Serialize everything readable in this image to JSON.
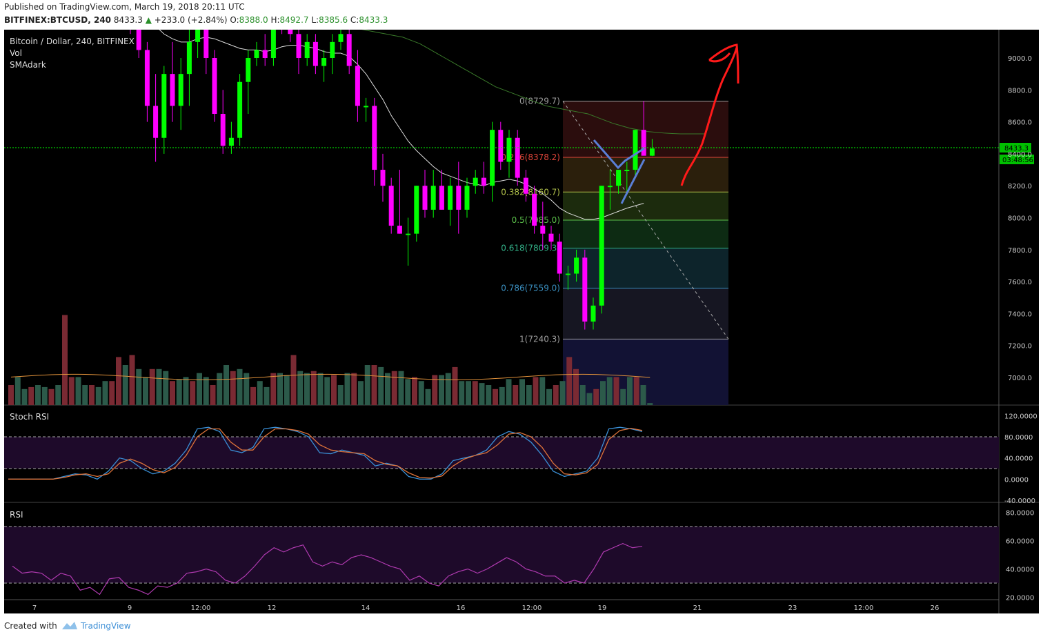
{
  "header": {
    "published": "Published on TradingView.com, March 19, 2018 20:11 UTC",
    "symbol": "BITFINEX:BTCUSD, 240",
    "last": "8433.3",
    "change": "+233.0 (+2.84%)",
    "o_label": "O:",
    "o": "8388.0",
    "h_label": "H:",
    "h": "8492.7",
    "l_label": "L:",
    "l": "8385.6",
    "c_label": "C:",
    "c": "8433.3"
  },
  "legend": {
    "title": "Bitcoin / Dollar, 240, BITFINEX",
    "vol": "Vol",
    "sma": "SMAdark"
  },
  "price_tag": "8433.3",
  "countdown_tag": "03:48:56",
  "pane_labels": {
    "stoch": "Stoch RSI",
    "rsi": "RSI"
  },
  "footer": {
    "created": "Created with",
    "brand": "TradingView"
  },
  "colors": {
    "up": "#00ff00",
    "down": "#ff00ff",
    "background": "#000000",
    "annotation": "#ff0000"
  },
  "chart_data": [
    {
      "type": "candlestick",
      "title": "Bitcoin / Dollar, 240, BITFINEX",
      "price_axis_ticks": [
        7000,
        7200,
        7400,
        7600,
        7800,
        8000,
        8200,
        8400,
        8600,
        8800,
        9000
      ],
      "time_axis_ticks": [
        "7",
        "9",
        "12:00",
        "12",
        "14",
        "16",
        "12:00",
        "19",
        "21",
        "23",
        "12:00",
        "26"
      ],
      "fibonacci": [
        {
          "level": "0",
          "price": 8729.7,
          "label": "0(8729.7)",
          "color": "#9e9e9e"
        },
        {
          "level": "0.236",
          "price": 8378.2,
          "label": "0.236(8378.2)",
          "color": "#e0453a"
        },
        {
          "level": "0.382",
          "price": 8160.7,
          "label": "0.382(8160.7)",
          "color": "#b0c04a"
        },
        {
          "level": "0.5",
          "price": 7985.0,
          "label": "0.5(7985.0)",
          "color": "#5cc24b"
        },
        {
          "level": "0.618",
          "price": 7809.3,
          "label": "0.618(7809.3)",
          "color": "#33b38a"
        },
        {
          "level": "0.786",
          "price": 7559.0,
          "label": "0.786(7559.0)",
          "color": "#3a8fc0"
        },
        {
          "level": "1",
          "price": 7240.3,
          "label": "1(7240.3)",
          "color": "#9e9e9e"
        }
      ],
      "candles": [
        {
          "o": 9300,
          "h": 9450,
          "l": 9150,
          "c": 9200
        },
        {
          "o": 9200,
          "h": 9400,
          "l": 9000,
          "c": 9050
        },
        {
          "o": 9050,
          "h": 9100,
          "l": 8600,
          "c": 8700
        },
        {
          "o": 8700,
          "h": 8900,
          "l": 8350,
          "c": 8500
        },
        {
          "o": 8500,
          "h": 8950,
          "l": 8400,
          "c": 8900
        },
        {
          "o": 8900,
          "h": 9100,
          "l": 8600,
          "c": 8700
        },
        {
          "o": 8700,
          "h": 9000,
          "l": 8550,
          "c": 8900
        },
        {
          "o": 8900,
          "h": 9200,
          "l": 8700,
          "c": 9100
        },
        {
          "o": 9100,
          "h": 9350,
          "l": 9000,
          "c": 9250
        },
        {
          "o": 9250,
          "h": 9300,
          "l": 8900,
          "c": 9000
        },
        {
          "o": 9000,
          "h": 9050,
          "l": 8600,
          "c": 8650
        },
        {
          "o": 8650,
          "h": 8800,
          "l": 8400,
          "c": 8450
        },
        {
          "o": 8450,
          "h": 8600,
          "l": 8400,
          "c": 8500
        },
        {
          "o": 8500,
          "h": 8900,
          "l": 8450,
          "c": 8850
        },
        {
          "o": 8850,
          "h": 9050,
          "l": 8650,
          "c": 9000
        },
        {
          "o": 9000,
          "h": 9100,
          "l": 8950,
          "c": 9050
        },
        {
          "o": 9050,
          "h": 9150,
          "l": 8950,
          "c": 9000
        },
        {
          "o": 9000,
          "h": 9350,
          "l": 8950,
          "c": 9300
        },
        {
          "o": 9300,
          "h": 9400,
          "l": 9150,
          "c": 9250
        },
        {
          "o": 9250,
          "h": 9300,
          "l": 9100,
          "c": 9150
        },
        {
          "o": 9150,
          "h": 9200,
          "l": 8900,
          "c": 9000
        },
        {
          "o": 9000,
          "h": 9150,
          "l": 8950,
          "c": 9100
        },
        {
          "o": 9100,
          "h": 9150,
          "l": 8900,
          "c": 8950
        },
        {
          "o": 8950,
          "h": 9050,
          "l": 8850,
          "c": 9000
        },
        {
          "o": 9000,
          "h": 9150,
          "l": 8900,
          "c": 9100
        },
        {
          "o": 9100,
          "h": 9200,
          "l": 9050,
          "c": 9150
        },
        {
          "o": 9150,
          "h": 9200,
          "l": 8900,
          "c": 8950
        },
        {
          "o": 8950,
          "h": 9050,
          "l": 8600,
          "c": 8700
        },
        {
          "o": 8700,
          "h": 8750,
          "l": 8600,
          "c": 8700
        },
        {
          "o": 8700,
          "h": 8750,
          "l": 8200,
          "c": 8300
        },
        {
          "o": 8300,
          "h": 8400,
          "l": 8100,
          "c": 8200
        },
        {
          "o": 8200,
          "h": 8250,
          "l": 7900,
          "c": 7950
        },
        {
          "o": 7950,
          "h": 8300,
          "l": 7900,
          "c": 7900
        },
        {
          "o": 7900,
          "h": 8000,
          "l": 7700,
          "c": 7900
        },
        {
          "o": 7900,
          "h": 8200,
          "l": 7850,
          "c": 8200
        },
        {
          "o": 8200,
          "h": 8300,
          "l": 8000,
          "c": 8050
        },
        {
          "o": 8050,
          "h": 8300,
          "l": 8000,
          "c": 8200
        },
        {
          "o": 8200,
          "h": 8300,
          "l": 8050,
          "c": 8050
        },
        {
          "o": 8050,
          "h": 8250,
          "l": 7950,
          "c": 8200
        },
        {
          "o": 8200,
          "h": 8350,
          "l": 7900,
          "c": 8050
        },
        {
          "o": 8050,
          "h": 8250,
          "l": 8000,
          "c": 8200
        },
        {
          "o": 8200,
          "h": 8300,
          "l": 8150,
          "c": 8250
        },
        {
          "o": 8250,
          "h": 8350,
          "l": 8150,
          "c": 8200
        },
        {
          "o": 8200,
          "h": 8600,
          "l": 8100,
          "c": 8550
        },
        {
          "o": 8550,
          "h": 8600,
          "l": 8300,
          "c": 8350
        },
        {
          "o": 8350,
          "h": 8550,
          "l": 8250,
          "c": 8500
        },
        {
          "o": 8500,
          "h": 8550,
          "l": 8200,
          "c": 8250
        },
        {
          "o": 8250,
          "h": 8300,
          "l": 8100,
          "c": 8150
        },
        {
          "o": 8150,
          "h": 8200,
          "l": 7900,
          "c": 7950
        },
        {
          "o": 7950,
          "h": 8100,
          "l": 7800,
          "c": 7900
        },
        {
          "o": 7900,
          "h": 7950,
          "l": 7800,
          "c": 7850
        },
        {
          "o": 7850,
          "h": 7900,
          "l": 7600,
          "c": 7650
        },
        {
          "o": 7650,
          "h": 7700,
          "l": 7550,
          "c": 7650
        },
        {
          "o": 7650,
          "h": 7800,
          "l": 7600,
          "c": 7750
        },
        {
          "o": 7750,
          "h": 7800,
          "l": 7300,
          "c": 7350
        },
        {
          "o": 7350,
          "h": 7500,
          "l": 7300,
          "c": 7450
        },
        {
          "o": 7450,
          "h": 8200,
          "l": 7400,
          "c": 8200
        },
        {
          "o": 8200,
          "h": 8300,
          "l": 8050,
          "c": 8200
        },
        {
          "o": 8200,
          "h": 8300,
          "l": 8150,
          "c": 8300
        },
        {
          "o": 8300,
          "h": 8350,
          "l": 8150,
          "c": 8300
        },
        {
          "o": 8300,
          "h": 8550,
          "l": 8250,
          "c": 8550
        },
        {
          "o": 8550,
          "h": 8729.7,
          "l": 8400,
          "c": 8388
        },
        {
          "o": 8388,
          "h": 8492.7,
          "l": 8385.6,
          "c": 8433.3
        }
      ],
      "sma_fast": [
        9350,
        9300,
        9250,
        9200,
        9150,
        9120,
        9100,
        9100,
        9120,
        9130,
        9120,
        9100,
        9080,
        9060,
        9050,
        9050,
        9040,
        9050,
        9070,
        9080,
        9080,
        9070,
        9060,
        9040,
        9030,
        9030,
        9010,
        8960,
        8900,
        8820,
        8740,
        8640,
        8560,
        8480,
        8420,
        8370,
        8320,
        8280,
        8260,
        8240,
        8220,
        8210,
        8200,
        8220,
        8230,
        8240,
        8230,
        8210,
        8180,
        8150,
        8110,
        8060,
        8030,
        8010,
        7990,
        7990,
        8000,
        8020,
        8040,
        8060,
        8075,
        8090
      ],
      "sma_slow": [
        9450,
        9440,
        9420,
        9400,
        9380,
        9360,
        9340,
        9320,
        9300,
        9290,
        9280,
        9270,
        9260,
        9250,
        9240,
        9230,
        9220,
        9210,
        9200,
        9190,
        9180,
        9170,
        9160,
        9150,
        9140,
        9130,
        9110,
        9090,
        9060,
        9030,
        9000,
        8970,
        8940,
        8910,
        8880,
        8850,
        8820,
        8800,
        8780,
        8760,
        8740,
        8720,
        8700,
        8690,
        8680,
        8670,
        8660,
        8650,
        8630,
        8610,
        8590,
        8575,
        8560,
        8550,
        8540,
        8535,
        8530,
        8527,
        8525,
        8525,
        8525,
        8525
      ]
    },
    {
      "type": "bar",
      "title": "Vol",
      "values": [
        10,
        14,
        8,
        9,
        10,
        9,
        8,
        10,
        45,
        14,
        14,
        10,
        10,
        9,
        12,
        12,
        24,
        20,
        25,
        18,
        14,
        18,
        18,
        17,
        12,
        13,
        14,
        12,
        16,
        14,
        10,
        16,
        20,
        17,
        18,
        16,
        9,
        12,
        9,
        16,
        16,
        15,
        25,
        17,
        16,
        17,
        16,
        14,
        15,
        10,
        16,
        16,
        12,
        20,
        20,
        19,
        16,
        17,
        17,
        13,
        14,
        12,
        8,
        15,
        15,
        16,
        19,
        12,
        12,
        12,
        11,
        10,
        8,
        9,
        13,
        10,
        13,
        10,
        14,
        14,
        8,
        10,
        12,
        24,
        18,
        10,
        6,
        8,
        12,
        14,
        14,
        8,
        14,
        14,
        10,
        1
      ],
      "down_color": "#7a2a33",
      "up_color": "#2c5a4a"
    },
    {
      "type": "line",
      "title": "Stoch RSI",
      "y_ticks": [
        "120.0000",
        "80.0000",
        "40.0000",
        "0.0000",
        "-40.0000"
      ],
      "band": [
        20,
        80
      ],
      "k": [
        0,
        0,
        0,
        0,
        0,
        5,
        10,
        8,
        0,
        15,
        40,
        35,
        20,
        10,
        15,
        30,
        55,
        95,
        98,
        90,
        55,
        50,
        60,
        95,
        98,
        95,
        90,
        80,
        50,
        48,
        55,
        50,
        45,
        25,
        30,
        25,
        5,
        0,
        0,
        10,
        35,
        40,
        45,
        55,
        80,
        90,
        85,
        70,
        45,
        15,
        5,
        10,
        15,
        40,
        95,
        98,
        95,
        90
      ],
      "d": [
        0,
        0,
        0,
        0,
        0,
        3,
        8,
        10,
        5,
        10,
        30,
        38,
        30,
        18,
        12,
        22,
        45,
        80,
        95,
        95,
        70,
        55,
        55,
        80,
        95,
        95,
        92,
        85,
        65,
        55,
        52,
        50,
        48,
        35,
        28,
        25,
        12,
        3,
        2,
        6,
        25,
        38,
        45,
        50,
        65,
        85,
        88,
        80,
        60,
        30,
        10,
        8,
        12,
        28,
        75,
        92,
        96,
        92
      ]
    },
    {
      "type": "line",
      "title": "RSI",
      "y_ticks": [
        "80.0000",
        "60.0000",
        "40.0000",
        "20.0000"
      ],
      "band": [
        30,
        70
      ],
      "values": [
        42,
        37,
        38,
        37,
        32,
        37,
        35,
        25,
        27,
        22,
        33,
        34,
        27,
        25,
        22,
        28,
        27,
        30,
        37,
        38,
        40,
        38,
        32,
        30,
        35,
        42,
        50,
        55,
        52,
        55,
        57,
        45,
        42,
        45,
        43,
        48,
        50,
        48,
        45,
        42,
        40,
        32,
        35,
        30,
        28,
        35,
        38,
        40,
        37,
        40,
        44,
        48,
        45,
        40,
        38,
        35,
        35,
        30,
        32,
        30,
        40,
        52,
        55,
        58,
        55,
        56
      ]
    }
  ]
}
